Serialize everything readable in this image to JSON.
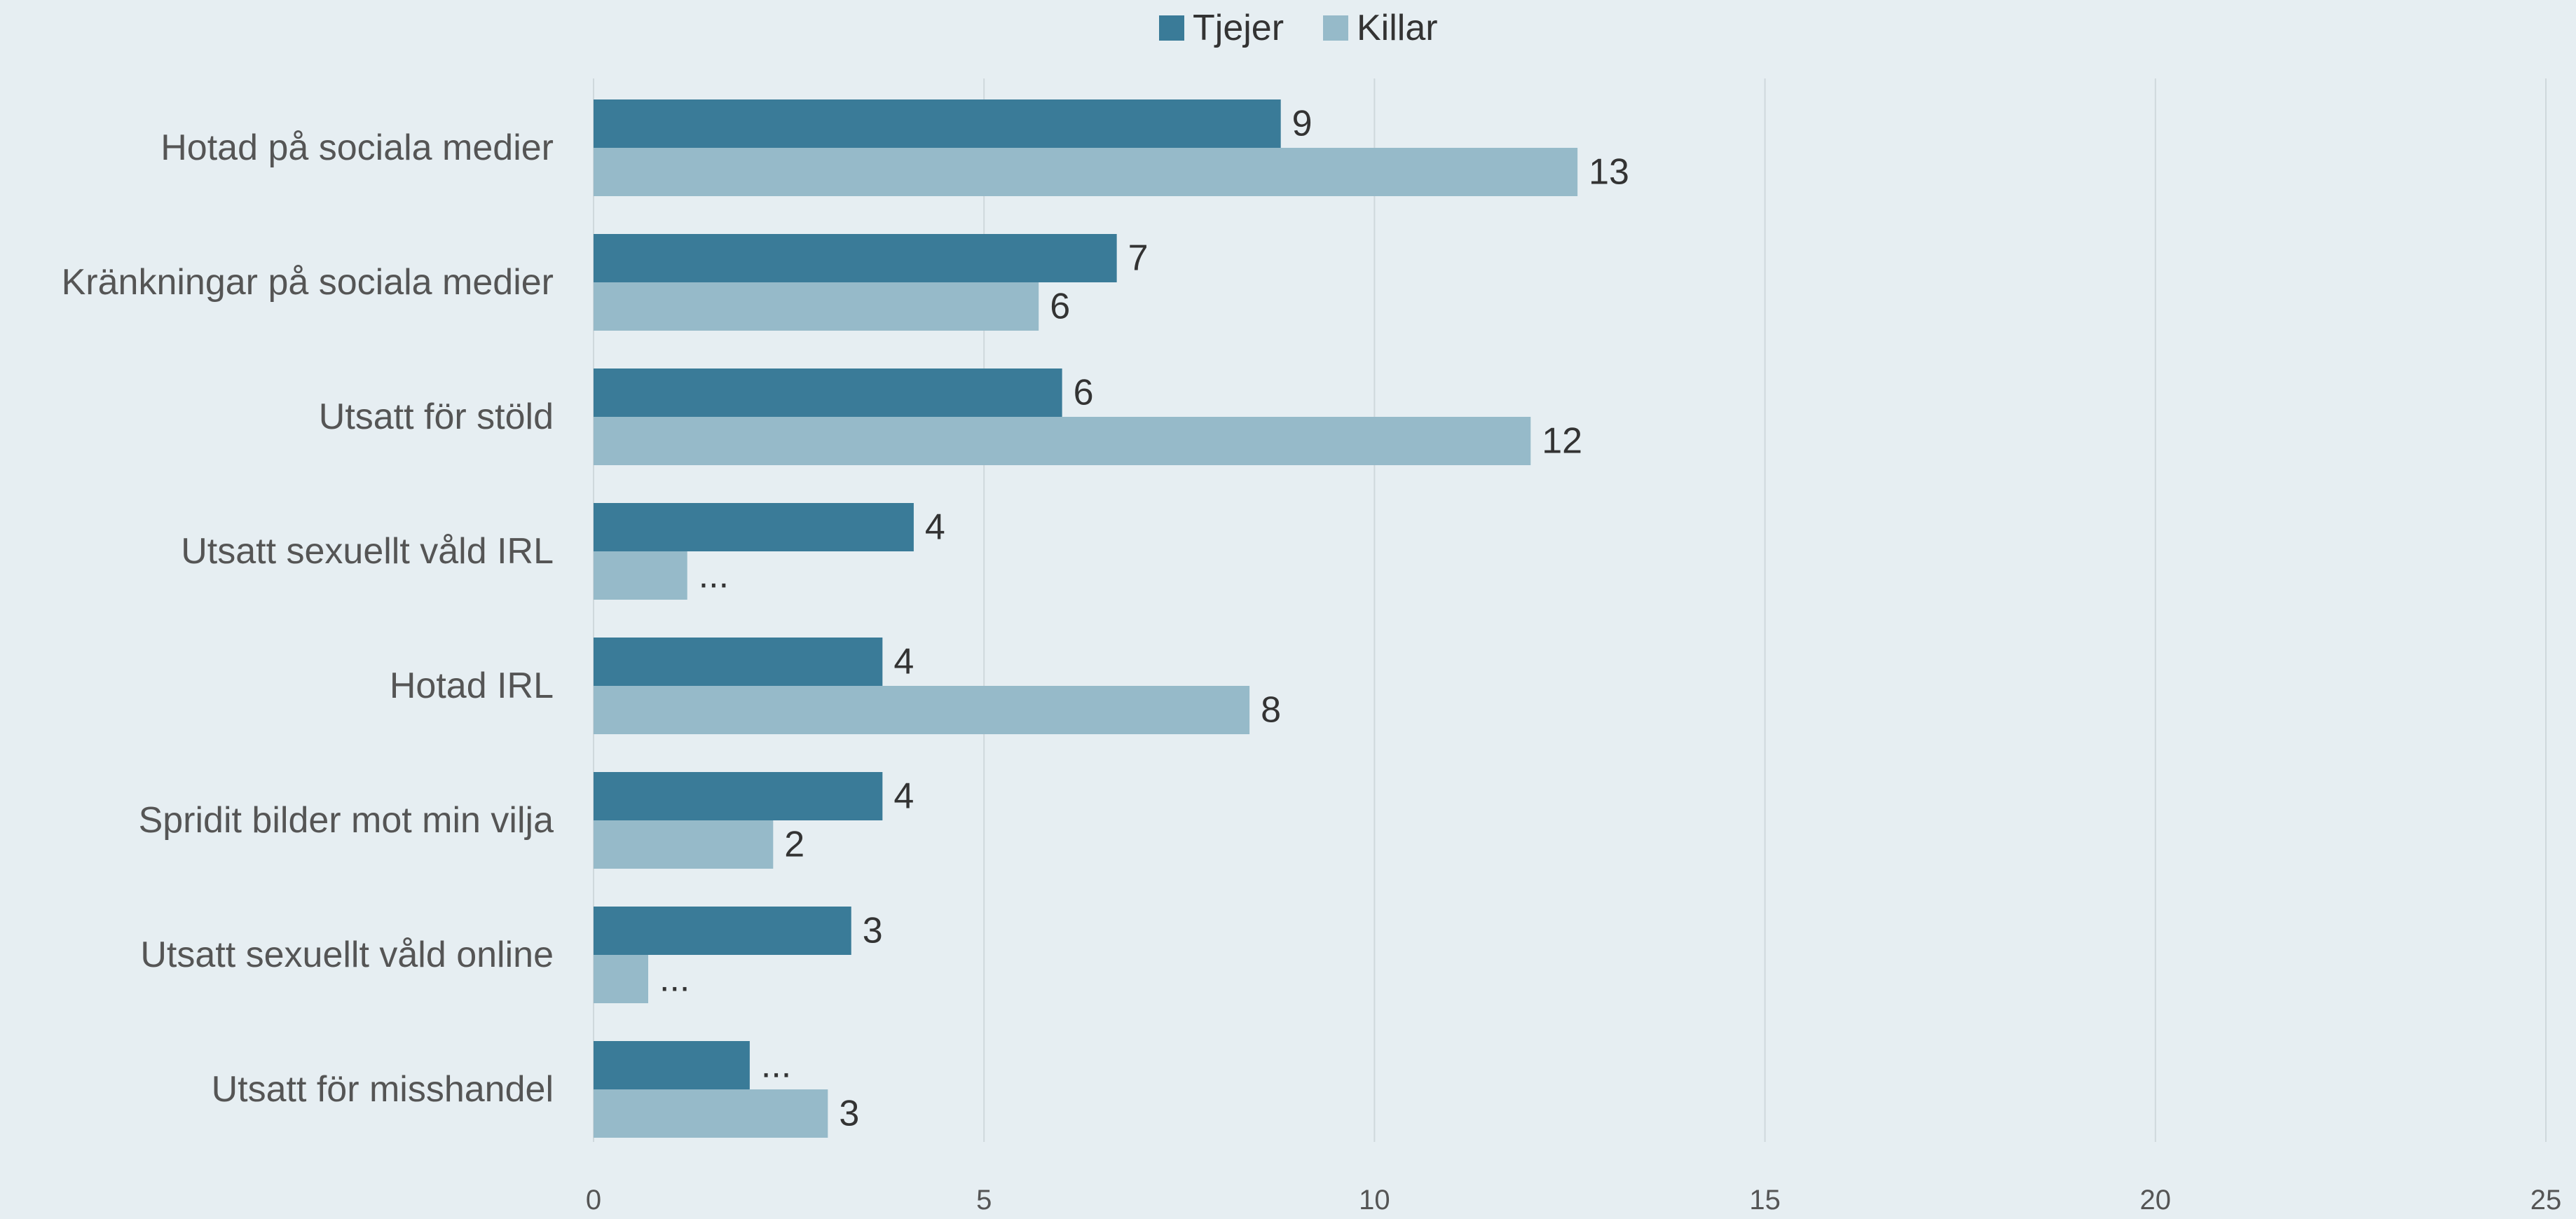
{
  "chart_data": {
    "type": "bar",
    "orientation": "horizontal",
    "categories": [
      "Hotad på sociala medier",
      "Kränkningar på sociala medier",
      "Utsatt för stöld",
      "Utsatt sexuellt våld IRL",
      "Hotad IRL",
      "Spridit bilder mot min vilja",
      "Utsatt sexuellt våld online",
      "Utsatt för misshandel"
    ],
    "series": [
      {
        "name": "Tjejer",
        "color": "#3a7b98",
        "values": [
          8.8,
          6.7,
          6.0,
          4.1,
          3.7,
          3.7,
          3.3,
          2.0
        ],
        "labels": [
          "9",
          "7",
          "6",
          "4",
          "4",
          "4",
          "3",
          "..."
        ]
      },
      {
        "name": "Killar",
        "color": "#96bac9",
        "values": [
          12.6,
          5.7,
          12.0,
          1.2,
          8.4,
          2.3,
          0.7,
          3.0
        ],
        "labels": [
          "13",
          "6",
          "12",
          "...",
          "8",
          "2",
          "...",
          "3"
        ]
      }
    ],
    "xlim": [
      0,
      25
    ],
    "xticks": [
      0,
      5,
      10,
      15,
      20,
      25
    ],
    "xtick_labels": [
      "0",
      "5",
      "10",
      "15",
      "20",
      "25"
    ],
    "grid": true,
    "legend_position": "top-center"
  }
}
